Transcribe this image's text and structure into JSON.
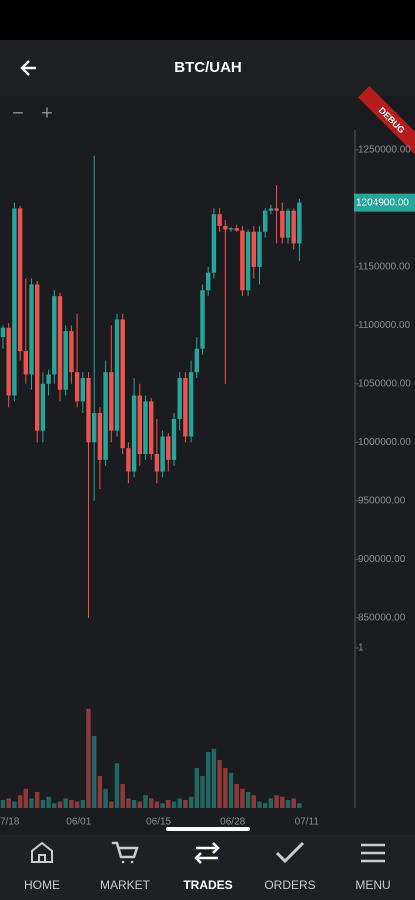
{
  "header": {
    "title": "BTC/UAH"
  },
  "zoom": {
    "out": "−",
    "in": "+"
  },
  "debug": "DEBUG",
  "chart_data": {
    "type": "candlestick",
    "categories": [
      "7/18",
      null,
      null,
      null,
      null,
      null,
      null,
      null,
      null,
      null,
      null,
      null,
      null,
      null,
      "06/01",
      null,
      null,
      null,
      null,
      null,
      null,
      null,
      null,
      null,
      null,
      null,
      null,
      null,
      "06/15",
      null,
      null,
      null,
      null,
      null,
      null,
      null,
      null,
      null,
      null,
      null,
      null,
      "06/28",
      null,
      null,
      null,
      null,
      null,
      null,
      null,
      null,
      null,
      null,
      null,
      null,
      "07/11"
    ],
    "open": [
      1090000,
      1098000,
      1040000,
      1200000,
      1078000,
      1058000,
      1135000,
      1010000,
      1050000,
      1058000,
      1125000,
      1045000,
      1095000,
      1060000,
      1035000,
      1055000,
      1000000,
      1025000,
      985000,
      1060000,
      1010000,
      1105000,
      995000,
      975000,
      1040000,
      990000,
      1035000,
      990000,
      975000,
      1005000,
      985000,
      1020000,
      1055000,
      1005000,
      1060000,
      1080000,
      1130000,
      1145000,
      1195000,
      1185000,
      1182000,
      1183000,
      1181000,
      1130000,
      1180000,
      1150000,
      1180000,
      1198000,
      1200000,
      1198000,
      1175000,
      1198000,
      1170000,
      null,
      null
    ],
    "high": [
      1100000,
      1102000,
      1205000,
      1202000,
      1140000,
      1140000,
      1138000,
      1060000,
      1062000,
      1130000,
      1128000,
      1100000,
      1100000,
      1110000,
      1060000,
      1060000,
      1245000,
      1030000,
      1070000,
      1100000,
      1110000,
      1110000,
      1000000,
      1055000,
      1050000,
      1040000,
      1038000,
      1020000,
      1010000,
      1008000,
      1025000,
      1060000,
      1060000,
      1070000,
      1090000,
      1135000,
      1150000,
      1200000,
      1200000,
      1190000,
      1184000,
      1186000,
      1185000,
      1182000,
      1185000,
      1185000,
      1200000,
      1203000,
      1220000,
      1205000,
      1200000,
      1200000,
      1208000,
      null,
      null
    ],
    "low": [
      1080000,
      1030000,
      1035000,
      1070000,
      1050000,
      1045000,
      1000000,
      1000000,
      1040000,
      1050000,
      1035000,
      1040000,
      1050000,
      1030000,
      1025000,
      850000,
      950000,
      960000,
      980000,
      1000000,
      1005000,
      990000,
      965000,
      970000,
      980000,
      985000,
      985000,
      965000,
      970000,
      975000,
      980000,
      1010000,
      1000000,
      1000000,
      1055000,
      1075000,
      1125000,
      1140000,
      1180000,
      1050000,
      1180000,
      1180000,
      1125000,
      1125000,
      1140000,
      1135000,
      1175000,
      1195000,
      1170000,
      1170000,
      1170000,
      1165000,
      1155000,
      null,
      null
    ],
    "close": [
      1098000,
      1040000,
      1200000,
      1078000,
      1058000,
      1135000,
      1010000,
      1050000,
      1058000,
      1125000,
      1045000,
      1095000,
      1060000,
      1035000,
      1055000,
      1000000,
      1025000,
      985000,
      1060000,
      1010000,
      1105000,
      995000,
      975000,
      1040000,
      990000,
      1035000,
      990000,
      975000,
      1005000,
      985000,
      1020000,
      1055000,
      1005000,
      1060000,
      1080000,
      1130000,
      1145000,
      1195000,
      1185000,
      1182000,
      1183000,
      1181000,
      1130000,
      1180000,
      1150000,
      1180000,
      1198000,
      1200000,
      1198000,
      1175000,
      1198000,
      1170000,
      1204900,
      null,
      null
    ],
    "volume": [
      0.05,
      0.06,
      0.04,
      0.08,
      0.12,
      0.06,
      0.1,
      0.05,
      0.07,
      0.03,
      0.04,
      0.06,
      0.05,
      0.04,
      0.05,
      0.62,
      0.45,
      0.2,
      0.12,
      0.04,
      0.28,
      0.15,
      0.06,
      0.05,
      0.04,
      0.08,
      0.06,
      0.04,
      0.03,
      0.05,
      0.04,
      0.06,
      0.05,
      0.07,
      0.25,
      0.2,
      0.35,
      0.37,
      0.3,
      0.25,
      0.22,
      0.15,
      0.12,
      0.1,
      0.08,
      0.04,
      0.03,
      0.06,
      0.08,
      0.07,
      0.05,
      0.06,
      0.03,
      null,
      null
    ],
    "up_color": "#26a69a",
    "down_color": "#ef5350",
    "ylim": [
      831000,
      1267000
    ],
    "yticks": [
      {
        "value": 850000,
        "label": "850000.00"
      },
      {
        "value": 900000,
        "label": "900000.00"
      },
      {
        "value": 950000,
        "label": "950000.00"
      },
      {
        "value": 1000000,
        "label": "1000000.00"
      },
      {
        "value": 1050000,
        "label": "1050000.00"
      },
      {
        "value": 1100000,
        "label": "1100000.00"
      },
      {
        "value": 1150000,
        "label": "1150000.00"
      },
      {
        "value": 1200000,
        "label": "1200000.00"
      },
      {
        "value": 1250000,
        "label": "1250000.00"
      }
    ],
    "current_price": {
      "value": 1204900,
      "label": "1204900.00"
    },
    "volume_ylim": [
      0,
      1
    ],
    "volume_yticks": [
      1
    ]
  },
  "nav": [
    {
      "label": "HOME"
    },
    {
      "label": "MARKET"
    },
    {
      "label": "TRADES"
    },
    {
      "label": "ORDERS"
    },
    {
      "label": "MENU"
    }
  ]
}
